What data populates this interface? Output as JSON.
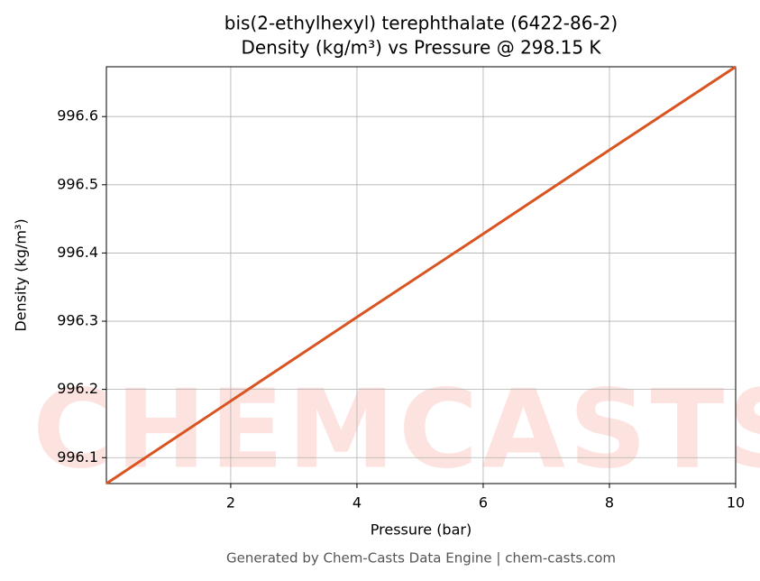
{
  "chart_data": {
    "type": "line",
    "title": "bis(2-ethylhexyl) terephthalate (6422-86-2)",
    "subtitle": "Density (kg/m³) vs Pressure @ 298.15 K",
    "x_label": "Pressure (bar)",
    "y_label": "Density (kg/m³)",
    "watermark": "CHEMCASTS",
    "footer": "Generated by Chem-Casts Data Engine | chem-casts.com",
    "x": [
      0.03,
      2,
      4,
      6,
      8,
      10
    ],
    "series": [
      {
        "name": "Density",
        "color": "#d95420",
        "values": [
          996.062,
          996.183,
          996.306,
          996.428,
          996.551,
          996.673
        ]
      }
    ],
    "xlim": [
      0.03,
      10
    ],
    "ylim": [
      996.062,
      996.673
    ],
    "xticks": [
      2,
      4,
      6,
      8,
      10
    ],
    "yticks": [
      996.1,
      996.2,
      996.3,
      996.4,
      996.5,
      996.6
    ],
    "grid": true
  }
}
